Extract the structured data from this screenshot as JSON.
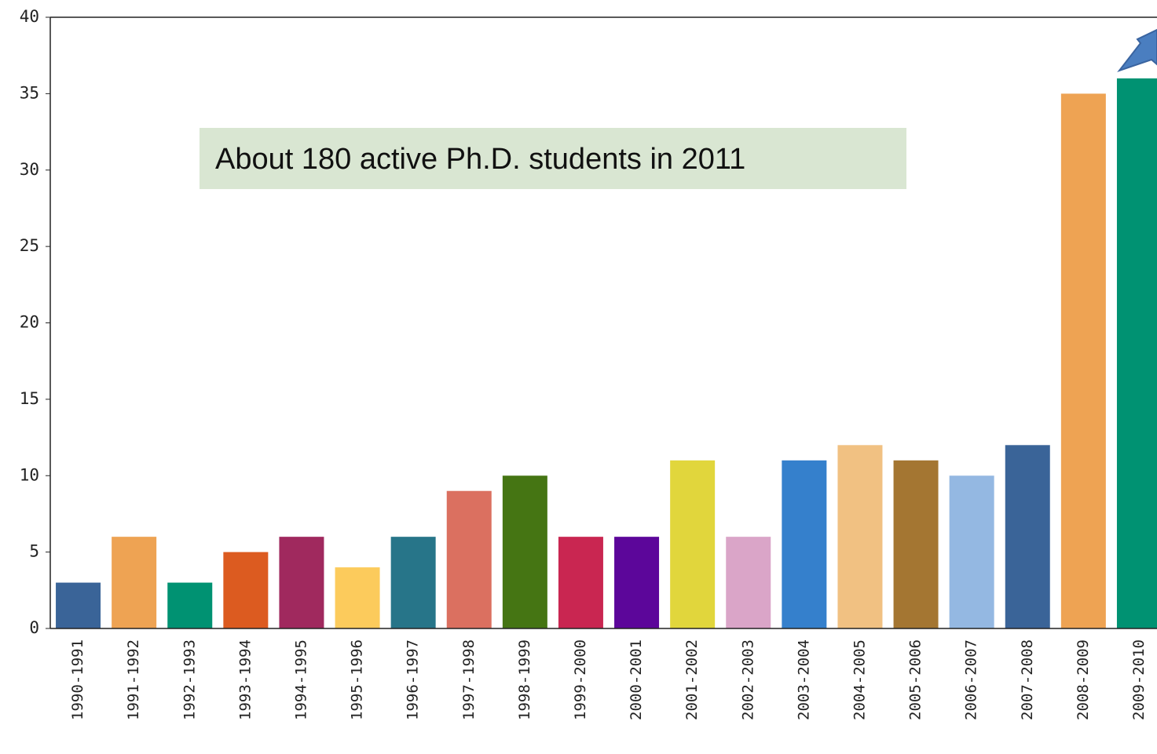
{
  "chart_data": {
    "type": "bar",
    "annotation": "About 180 active Ph.D. students in 2011",
    "categories": [
      "1990-1991",
      "1991-1992",
      "1992-1993",
      "1993-1994",
      "1994-1995",
      "1995-1996",
      "1996-1997",
      "1997-1998",
      "1998-1999",
      "1999-2000",
      "2000-2001",
      "2001-2002",
      "2002-2003",
      "2003-2004",
      "2004-2005",
      "2005-2006",
      "2006-2007",
      "2007-2008",
      "2008-2009",
      "2009-2010"
    ],
    "values": [
      3,
      6,
      3,
      5,
      6,
      4,
      6,
      9,
      10,
      6,
      6,
      11,
      6,
      11,
      12,
      11,
      10,
      12,
      35,
      36
    ],
    "colors": [
      "#3a6498",
      "#eea353",
      "#009272",
      "#dc5b20",
      "#a0295e",
      "#fccb5c",
      "#277589",
      "#db7060",
      "#457513",
      "#c92651",
      "#5c069a",
      "#e1d63c",
      "#daa5c8",
      "#3580cc",
      "#f1c182",
      "#a47632",
      "#94b8e2",
      "#3a6498",
      "#eea353",
      "#009272"
    ],
    "ylim": [
      0,
      40
    ],
    "yticks": [
      0,
      5,
      10,
      15,
      20,
      25,
      30,
      35,
      40
    ],
    "grid": false
  }
}
